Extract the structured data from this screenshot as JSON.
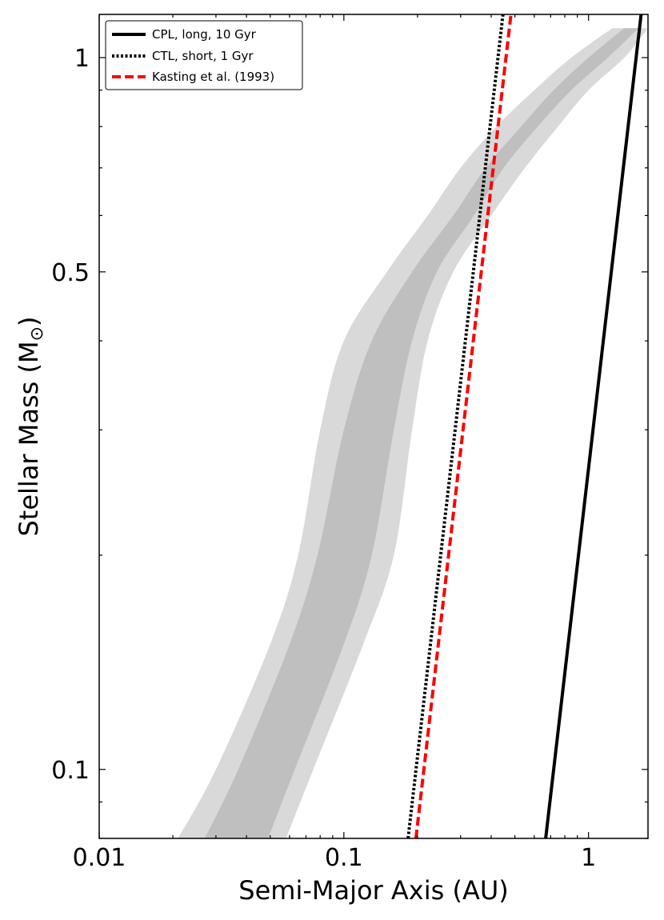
{
  "chart_data": {
    "type": "line",
    "xlabel": "Semi-Major Axis (AU)",
    "ylabel": "Stellar Mass (M",
    "ylabel_symbol": "⊙",
    "ylabel_close": ")",
    "xscale": "log",
    "yscale": "log",
    "xlim": [
      0.01,
      1.75
    ],
    "ylim": [
      0.08,
      1.15
    ],
    "x_ticks": [
      {
        "value": 0.01,
        "label": "0.01"
      },
      {
        "value": 0.1,
        "label": "0.1"
      },
      {
        "value": 1,
        "label": "1"
      }
    ],
    "y_ticks": [
      {
        "value": 0.1,
        "label": "0.1"
      },
      {
        "value": 0.5,
        "label": "0.5"
      },
      {
        "value": 1,
        "label": "1"
      }
    ],
    "grid": false,
    "legend_position": "top-left",
    "bands": [
      {
        "name": "outer",
        "color": "#d9d9d9",
        "mass": [
          0.08,
          0.1,
          0.15,
          0.2,
          0.3,
          0.4,
          0.5,
          0.6,
          0.7,
          0.8,
          0.9,
          1.0,
          1.1
        ],
        "inner_au": [
          0.021,
          0.03,
          0.05,
          0.065,
          0.08,
          0.1,
          0.15,
          0.22,
          0.3,
          0.42,
          0.6,
          0.85,
          1.25
        ],
        "outer_au": [
          0.058,
          0.075,
          0.12,
          0.16,
          0.19,
          0.22,
          0.28,
          0.4,
          0.55,
          0.75,
          1.0,
          1.4,
          1.75
        ]
      },
      {
        "name": "inner",
        "color": "#bfbfbf",
        "mass": [
          0.08,
          0.1,
          0.15,
          0.2,
          0.3,
          0.4,
          0.5,
          0.6,
          0.7,
          0.8,
          0.9,
          1.0,
          1.1
        ],
        "inner_au": [
          0.027,
          0.037,
          0.06,
          0.078,
          0.1,
          0.13,
          0.19,
          0.28,
          0.38,
          0.53,
          0.72,
          1.0,
          1.4
        ],
        "outer_au": [
          0.049,
          0.063,
          0.1,
          0.13,
          0.16,
          0.19,
          0.24,
          0.34,
          0.45,
          0.62,
          0.85,
          1.2,
          1.6
        ]
      }
    ],
    "series": [
      {
        "name": "CPL, long, 10 Gyr",
        "color": "#000000",
        "style": "solid",
        "x": [
          0.668,
          1.64
        ],
        "y": [
          0.08,
          1.15
        ]
      },
      {
        "name": "CTL, short, 1 Gyr",
        "color": "#000000",
        "style": "dotted",
        "x": [
          0.183,
          0.447
        ],
        "y": [
          0.08,
          1.15
        ]
      },
      {
        "name": "Kasting et al. (1993)",
        "color": "#ff0000",
        "style": "dashed",
        "x": [
          0.197,
          0.482
        ],
        "y": [
          0.08,
          1.15
        ]
      }
    ]
  }
}
